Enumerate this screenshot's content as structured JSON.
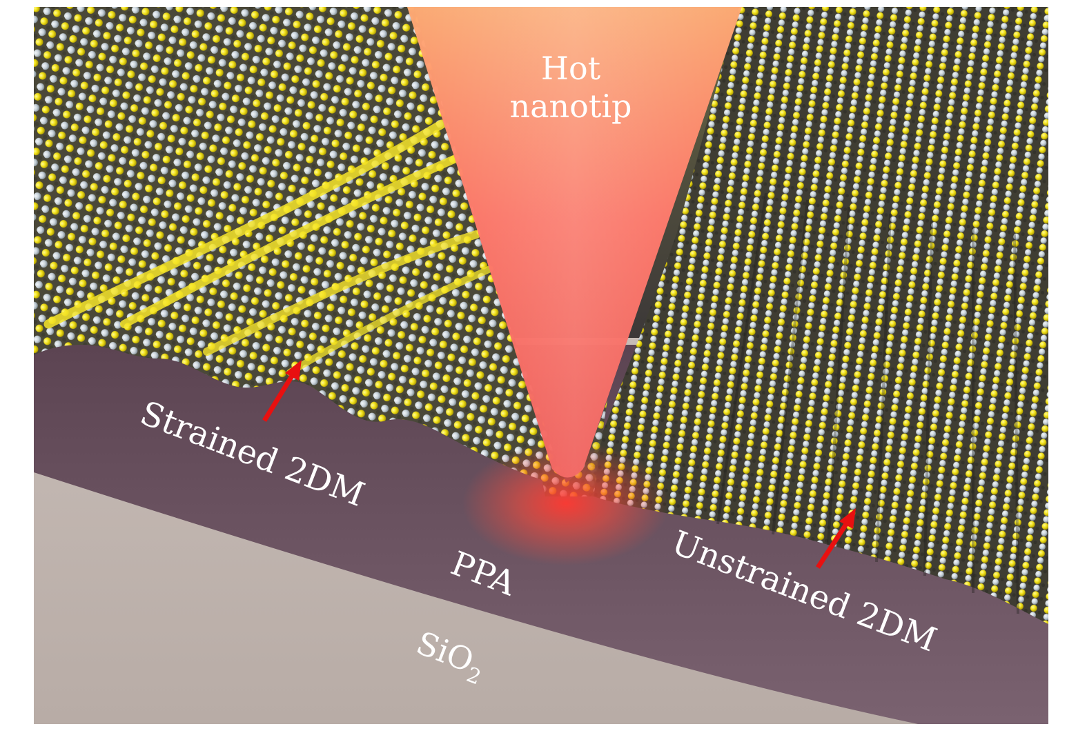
{
  "labels": {
    "hot_line1": "Hot",
    "hot_line2": "nanotip",
    "strained": "Strained 2DM",
    "unstrained": "Unstrained 2DM",
    "ppa": "PPA",
    "sio2_main": "SiO",
    "sio2_sub": "2"
  },
  "colors": {
    "sulfur_atom": "#f2e21a",
    "metal_atom": "#c9d3da",
    "ppa_layer": "#6f5866",
    "sio2_layer": "#c6bab4",
    "tip_core": "#ff3a32",
    "arrow": "#e81010"
  }
}
